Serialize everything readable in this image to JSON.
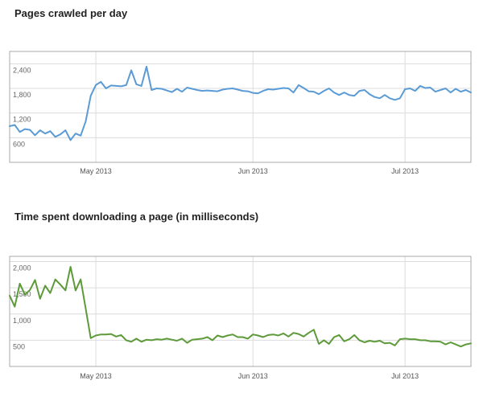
{
  "chart_data": [
    {
      "type": "line",
      "title": "Pages crawled per day",
      "xlabel": "",
      "ylabel": "",
      "color": "#5b9bd5",
      "ylim": [
        0,
        2700
      ],
      "yticks": [
        {
          "value": 2400,
          "label": "2,400"
        },
        {
          "value": 1800,
          "label": "1,800"
        },
        {
          "value": 1200,
          "label": "1,200"
        },
        {
          "value": 600,
          "label": "600"
        }
      ],
      "xlim": [
        0,
        91
      ],
      "xticks": [
        {
          "value": 17,
          "label": "May 2013"
        },
        {
          "value": 48,
          "label": "Jun 2013"
        },
        {
          "value": 78,
          "label": "Jul 2013"
        }
      ],
      "grid": true,
      "series": [
        {
          "name": "",
          "x": [
            0,
            1,
            2,
            3,
            4,
            5,
            6,
            7,
            8,
            9,
            10,
            11,
            12,
            13,
            14,
            15,
            16,
            17,
            18,
            19,
            20,
            21,
            22,
            23,
            24,
            25,
            26,
            27,
            28,
            29,
            30,
            31,
            32,
            33,
            34,
            35,
            36,
            37,
            38,
            39,
            40,
            41,
            42,
            43,
            44,
            45,
            46,
            47,
            48,
            49,
            50,
            51,
            52,
            53,
            54,
            55,
            56,
            57,
            58,
            59,
            60,
            61,
            62,
            63,
            64,
            65,
            66,
            67,
            68,
            69,
            70,
            71,
            72,
            73,
            74,
            75,
            76,
            77,
            78,
            79,
            80,
            81,
            82,
            83,
            84,
            85,
            86,
            87,
            88,
            89,
            90,
            91
          ],
          "y": [
            880,
            910,
            740,
            810,
            790,
            660,
            780,
            700,
            760,
            620,
            680,
            780,
            540,
            700,
            650,
            1000,
            1620,
            1880,
            1960,
            1800,
            1870,
            1860,
            1850,
            1880,
            2240,
            1900,
            1860,
            2330,
            1760,
            1800,
            1790,
            1750,
            1710,
            1790,
            1720,
            1820,
            1790,
            1760,
            1740,
            1750,
            1740,
            1730,
            1770,
            1790,
            1800,
            1770,
            1740,
            1730,
            1690,
            1680,
            1740,
            1780,
            1770,
            1790,
            1810,
            1800,
            1700,
            1880,
            1810,
            1730,
            1720,
            1660,
            1740,
            1800,
            1700,
            1640,
            1700,
            1640,
            1620,
            1740,
            1760,
            1660,
            1590,
            1560,
            1640,
            1560,
            1520,
            1560,
            1780,
            1800,
            1740,
            1860,
            1810,
            1820,
            1720,
            1760,
            1800,
            1700,
            1790,
            1720,
            1760,
            1700
          ]
        }
      ]
    },
    {
      "type": "line",
      "title": "Time spent downloading a page (in milliseconds)",
      "xlabel": "",
      "ylabel": "",
      "color": "#5d9a3a",
      "ylim": [
        0,
        2100
      ],
      "yticks": [
        {
          "value": 2000,
          "label": "2,000"
        },
        {
          "value": 1500,
          "label": "1,500"
        },
        {
          "value": 1000,
          "label": "1,000"
        },
        {
          "value": 500,
          "label": "500"
        }
      ],
      "xlim": [
        0,
        91
      ],
      "xticks": [
        {
          "value": 17,
          "label": "May 2013"
        },
        {
          "value": 48,
          "label": "Jun 2013"
        },
        {
          "value": 78,
          "label": "Jul 2013"
        }
      ],
      "grid": true,
      "series": [
        {
          "name": "",
          "x": [
            0,
            1,
            2,
            3,
            4,
            5,
            6,
            7,
            8,
            9,
            10,
            11,
            12,
            13,
            14,
            15,
            16,
            17,
            18,
            19,
            20,
            21,
            22,
            23,
            24,
            25,
            26,
            27,
            28,
            29,
            30,
            31,
            32,
            33,
            34,
            35,
            36,
            37,
            38,
            39,
            40,
            41,
            42,
            43,
            44,
            45,
            46,
            47,
            48,
            49,
            50,
            51,
            52,
            53,
            54,
            55,
            56,
            57,
            58,
            59,
            60,
            61,
            62,
            63,
            64,
            65,
            66,
            67,
            68,
            69,
            70,
            71,
            72,
            73,
            74,
            75,
            76,
            77,
            78,
            79,
            80,
            81,
            82,
            83,
            84,
            85,
            86,
            87,
            88,
            89,
            90,
            91
          ],
          "y": [
            1350,
            1140,
            1580,
            1370,
            1460,
            1650,
            1290,
            1540,
            1400,
            1660,
            1560,
            1450,
            1900,
            1450,
            1660,
            1100,
            540,
            590,
            610,
            610,
            620,
            570,
            600,
            500,
            470,
            530,
            470,
            510,
            500,
            520,
            510,
            530,
            510,
            490,
            530,
            450,
            510,
            520,
            530,
            560,
            500,
            590,
            560,
            590,
            610,
            560,
            560,
            530,
            610,
            590,
            560,
            600,
            610,
            590,
            630,
            570,
            640,
            620,
            570,
            640,
            700,
            430,
            500,
            430,
            560,
            600,
            480,
            520,
            600,
            500,
            460,
            490,
            470,
            490,
            440,
            450,
            400,
            520,
            530,
            520,
            520,
            500,
            500,
            480,
            480,
            470,
            420,
            460,
            420,
            380,
            420,
            440
          ]
        }
      ]
    }
  ]
}
